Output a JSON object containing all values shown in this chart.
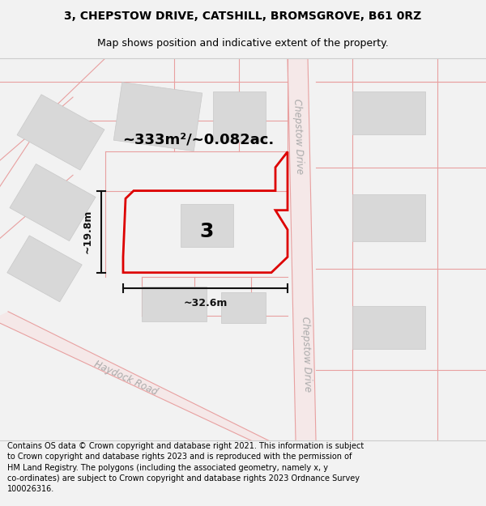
{
  "title_line1": "3, CHEPSTOW DRIVE, CATSHILL, BROMSGROVE, B61 0RZ",
  "title_line2": "Map shows position and indicative extent of the property.",
  "footer_text": "Contains OS data © Crown copyright and database right 2021. This information is subject\nto Crown copyright and database rights 2023 and is reproduced with the permission of\nHM Land Registry. The polygons (including the associated geometry, namely x, y\nco-ordinates) are subject to Crown copyright and database rights 2023 Ordnance Survey\n100026316.",
  "area_label": "~333m²/~0.082ac.",
  "number_label": "3",
  "width_label": "~32.6m",
  "height_label": "~19.8m",
  "road_haydock": "Haydock Road",
  "road_chepstow_top": "Chepstow Drive",
  "road_chepstow_bottom": "Chepstow Drive",
  "bg_color": "#f2f2f2",
  "map_bg": "#ffffff",
  "plot_color": "#dd0000",
  "road_fill": "#f5e8e8",
  "road_line": "#e8a0a0",
  "building_fill": "#d8d8d8",
  "building_edge": "#c8c8c8",
  "dim_color": "#111111",
  "road_text_color": "#aaaaaa"
}
